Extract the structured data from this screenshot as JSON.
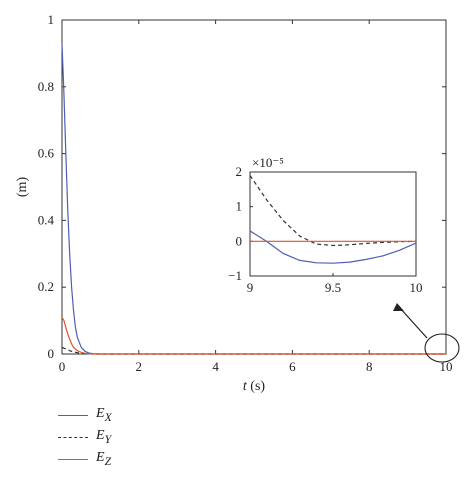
{
  "chart_data": [
    {
      "type": "line",
      "xlabel": "t (s)",
      "ylabel": "(m)",
      "xlim": [
        0,
        10
      ],
      "ylim": [
        0,
        1
      ],
      "xticks": [
        "0",
        "2",
        "4",
        "6",
        "8",
        "10"
      ],
      "yticks": [
        "0",
        "0.2",
        "0.4",
        "0.6",
        "0.8",
        "1"
      ],
      "series": [
        {
          "name": "E_X",
          "color": "#4f5fb3",
          "style": "solid",
          "x": [
            0,
            0.05,
            0.1,
            0.15,
            0.2,
            0.25,
            0.3,
            0.35,
            0.4,
            0.5,
            0.6,
            0.7,
            0.8,
            1.0,
            2,
            4,
            6,
            8,
            10
          ],
          "y": [
            0.93,
            0.78,
            0.6,
            0.43,
            0.3,
            0.2,
            0.13,
            0.08,
            0.05,
            0.02,
            0.008,
            0.003,
            0.001,
            0.0,
            0.0,
            0.0,
            0.0,
            0.0,
            0.0
          ]
        },
        {
          "name": "E_Y",
          "color": "#333333",
          "style": "dashed",
          "x": [
            0,
            0.1,
            0.2,
            0.3,
            0.4,
            0.5,
            0.6,
            0.8,
            1.0,
            2,
            4,
            6,
            8,
            10
          ],
          "y": [
            0.02,
            0.015,
            0.01,
            0.006,
            0.004,
            0.002,
            0.001,
            0.0,
            0.0,
            0.0,
            0.0,
            0.0,
            0.0,
            0.0
          ]
        },
        {
          "name": "E_Z",
          "color": "#e0532a",
          "style": "solid",
          "x": [
            0,
            0.05,
            0.1,
            0.15,
            0.2,
            0.25,
            0.3,
            0.4,
            0.5,
            0.6,
            0.8,
            1.0,
            2,
            4,
            6,
            8,
            10
          ],
          "y": [
            0.11,
            0.1,
            0.08,
            0.06,
            0.045,
            0.03,
            0.02,
            0.01,
            0.005,
            0.002,
            0.0,
            0.0,
            0.0,
            0.0,
            0.0,
            0.0,
            0.0
          ]
        }
      ]
    },
    {
      "type": "line",
      "inset": true,
      "xlim": [
        9,
        10
      ],
      "ylim": [
        -1,
        2
      ],
      "scale_label": "×10⁻⁵",
      "xticks": [
        "9",
        "9.5",
        "10"
      ],
      "yticks": [
        "−1",
        "0",
        "1",
        "2"
      ],
      "xtick_values": [
        9,
        9.5,
        10
      ],
      "ytick_values": [
        -1,
        0,
        1,
        2
      ],
      "series": [
        {
          "name": "E_X",
          "color": "#4f5fb3",
          "style": "solid",
          "x": [
            9.0,
            9.1,
            9.2,
            9.3,
            9.4,
            9.5,
            9.6,
            9.7,
            9.8,
            9.9,
            10.0
          ],
          "y": [
            0.3,
            0.0,
            -0.35,
            -0.55,
            -0.62,
            -0.63,
            -0.6,
            -0.52,
            -0.42,
            -0.26,
            -0.05
          ]
        },
        {
          "name": "E_Y",
          "color": "#333333",
          "style": "dashed",
          "x": [
            9.0,
            9.1,
            9.2,
            9.3,
            9.4,
            9.5,
            9.6,
            9.7,
            9.8,
            9.9,
            10.0
          ],
          "y": [
            1.9,
            1.2,
            0.6,
            0.15,
            -0.08,
            -0.12,
            -0.1,
            -0.06,
            -0.03,
            -0.01,
            0.0
          ]
        },
        {
          "name": "E_Z",
          "color": "#e0532a",
          "style": "solid",
          "x": [
            9.0,
            10.0
          ],
          "y": [
            0.0,
            0.0
          ]
        }
      ]
    }
  ],
  "legend": [
    {
      "base": "E",
      "sub": "X",
      "color": "#4f5fb3",
      "style": "solid"
    },
    {
      "base": "E",
      "sub": "Y",
      "color": "#333333",
      "style": "dashed"
    },
    {
      "base": "E",
      "sub": "Z",
      "color": "#e0532a",
      "style": "solid"
    }
  ]
}
